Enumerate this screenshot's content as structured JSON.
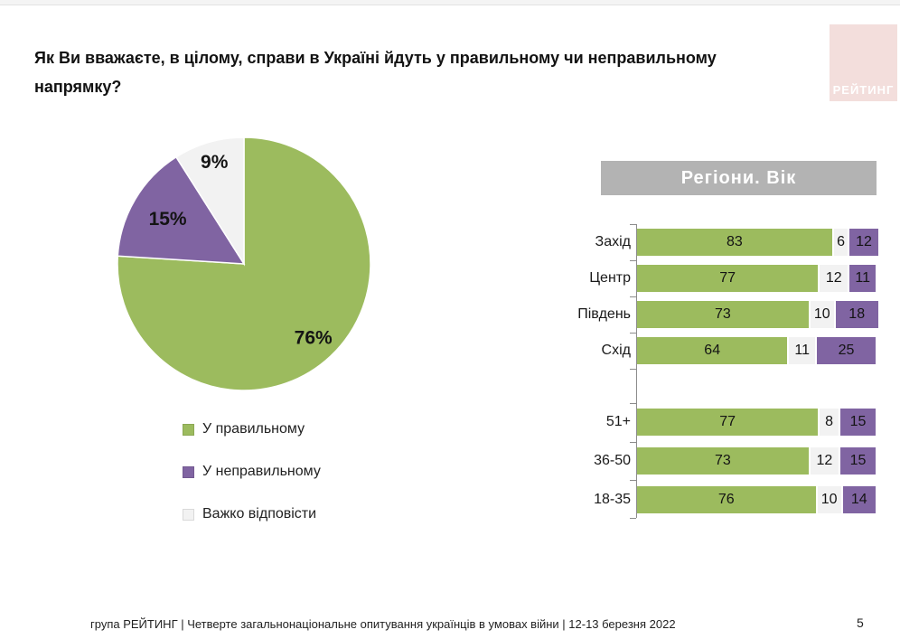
{
  "page": {
    "number": "5"
  },
  "logo": {
    "text": "РЕЙТИНГ"
  },
  "title": {
    "text": "Як Ви вважаєте, в цілому, справи в Україні йдуть у правильному чи неправильному напрямку?"
  },
  "section_header": {
    "text": "Регіони. Вік"
  },
  "footer": {
    "text": "група РЕЙТИНГ | Четверте загальнонаціональне опитування українців в умовах війни | 12-13 березня 2022"
  },
  "colors": {
    "green": "#9CBB5E",
    "purple": "#8064A2",
    "gray": "#F2F2F2",
    "header_bg": "#B3B3B3",
    "logo_bg": "#F3DEDC",
    "axis": "#8C8C8C"
  },
  "legend": {
    "items": [
      {
        "label": "У правильному",
        "color": "#9CBB5E"
      },
      {
        "label": "У неправильному",
        "color": "#8064A2"
      },
      {
        "label": "Важко відповісти",
        "color": "#F2F2F2"
      }
    ]
  },
  "chart_data": [
    {
      "type": "pie",
      "labels": [
        "У правильному",
        "У неправильному",
        "Важко відповісти"
      ],
      "values": [
        76,
        15,
        9
      ],
      "value_labels": [
        "76%",
        "15%",
        "9%"
      ],
      "colors": [
        "#9CBB5E",
        "#8064A2",
        "#F2F2F2"
      ],
      "start_angle_deg": 0,
      "direction": "clockwise",
      "legend_position": "below"
    },
    {
      "type": "bar",
      "orientation": "horizontal",
      "stacked": true,
      "title": "Регіони. Вік",
      "xlim": [
        0,
        100
      ],
      "series_order": [
        "У правильному",
        "Важко відповісти",
        "У неправильному"
      ],
      "series_colors": [
        "#9CBB5E",
        "#F2F2F2",
        "#8064A2"
      ],
      "groups": [
        {
          "name": "Регіони",
          "categories": [
            "Захід",
            "Центр",
            "Південь",
            "Схід"
          ],
          "rows": [
            [
              83,
              6,
              12
            ],
            [
              77,
              12,
              11
            ],
            [
              73,
              10,
              18
            ],
            [
              64,
              11,
              25
            ]
          ]
        },
        {
          "name": "Вік",
          "categories": [
            "51+",
            "36-50",
            "18-35"
          ],
          "rows": [
            [
              77,
              8,
              15
            ],
            [
              73,
              12,
              15
            ],
            [
              76,
              10,
              14
            ]
          ]
        }
      ]
    }
  ]
}
